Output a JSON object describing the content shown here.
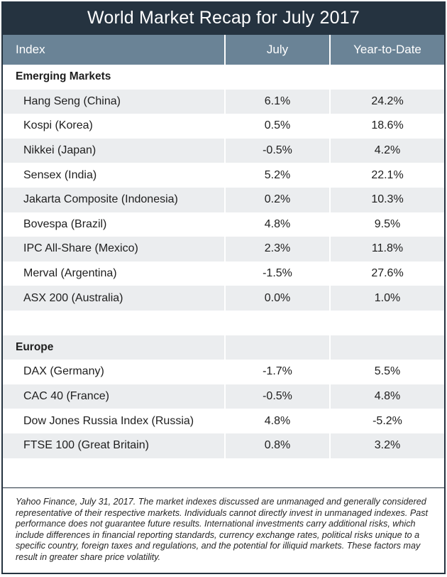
{
  "title": "World Market Recap for July 2017",
  "columns": {
    "index": "Index",
    "july": "July",
    "ytd": "Year-to-Date"
  },
  "sections": [
    {
      "name": "Emerging Markets",
      "rows": [
        {
          "index": "Hang Seng (China)",
          "july": "6.1%",
          "ytd": "24.2%"
        },
        {
          "index": "Kospi (Korea)",
          "july": "0.5%",
          "ytd": "18.6%"
        },
        {
          "index": "Nikkei (Japan)",
          "july": "-0.5%",
          "ytd": "4.2%"
        },
        {
          "index": "Sensex (India)",
          "july": "5.2%",
          "ytd": "22.1%"
        },
        {
          "index": "Jakarta Composite (Indonesia)",
          "july": "0.2%",
          "ytd": "10.3%"
        },
        {
          "index": "Bovespa (Brazil)",
          "july": "4.8%",
          "ytd": "9.5%"
        },
        {
          "index": "IPC All-Share (Mexico)",
          "july": "2.3%",
          "ytd": "11.8%"
        },
        {
          "index": "Merval (Argentina)",
          "july": "-1.5%",
          "ytd": "27.6%"
        },
        {
          "index": "ASX 200 (Australia)",
          "july": "0.0%",
          "ytd": "1.0%"
        }
      ]
    },
    {
      "name": "Europe",
      "rows": [
        {
          "index": "DAX (Germany)",
          "july": "-1.7%",
          "ytd": "5.5%"
        },
        {
          "index": "CAC 40 (France)",
          "july": "-0.5%",
          "ytd": "4.8%"
        },
        {
          "index": "Dow Jones Russia Index (Russia)",
          "july": "4.8%",
          "ytd": "-5.2%"
        },
        {
          "index": "FTSE 100 (Great Britain)",
          "july": "0.8%",
          "ytd": "3.2%"
        }
      ]
    }
  ],
  "footnote": "Yahoo Finance, July 31, 2017. The market indexes discussed are unmanaged and generally considered representative of their respective markets. Individuals cannot directly invest in unmanaged indexes. Past performance does not guarantee future results. International investments carry additional risks, which include differences in financial reporting standards, currency exchange rates, political risks unique to a specific country, foreign taxes and regulations, and the potential for illiquid markets. These factors may result in greater share price volatility.",
  "colors": {
    "frame": "#253340",
    "header": "#6a8396",
    "stripe": "#ebedef"
  }
}
